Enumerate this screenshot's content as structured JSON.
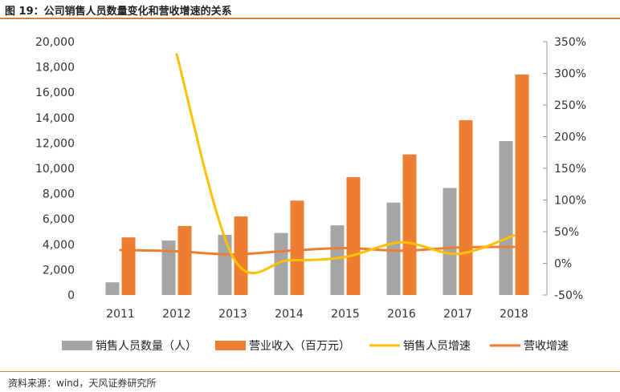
{
  "header": {
    "title": "图 19：公司销售人员数量变化和营收增速的关系"
  },
  "footer": {
    "source": "资料来源：wind，天风证券研究所"
  },
  "chart_data": {
    "type": "bar",
    "categories": [
      "2011",
      "2012",
      "2013",
      "2014",
      "2015",
      "2016",
      "2017",
      "2018"
    ],
    "series": [
      {
        "name": "销售人员数量（人）",
        "kind": "bar",
        "axis": "left",
        "color": "#a5a5a5",
        "values": [
          1000,
          4300,
          4750,
          4900,
          5500,
          7300,
          8450,
          12150
        ]
      },
      {
        "name": "营业收入（百万元）",
        "kind": "bar",
        "axis": "left",
        "color": "#ed7d31",
        "values": [
          4550,
          5450,
          6200,
          7450,
          9300,
          11100,
          13800,
          17400
        ]
      },
      {
        "name": "销售人员增速",
        "kind": "line",
        "axis": "right",
        "color": "#ffc000",
        "values": [
          null,
          330,
          10,
          5,
          10,
          33,
          15,
          44
        ]
      },
      {
        "name": "营收增速",
        "kind": "line",
        "axis": "right",
        "color": "#ed7d31",
        "values": [
          21,
          19,
          14,
          20,
          24,
          20,
          25,
          26
        ]
      }
    ],
    "y_left": {
      "min": 0,
      "max": 20000,
      "step": 2000,
      "tick_labels": [
        "0",
        "2,000",
        "4,000",
        "6,000",
        "8,000",
        "10,000",
        "12,000",
        "14,000",
        "16,000",
        "18,000",
        "20,000"
      ]
    },
    "y_right": {
      "min": -50,
      "max": 350,
      "step": 50,
      "tick_labels": [
        "-50%",
        "0%",
        "50%",
        "100%",
        "150%",
        "200%",
        "250%",
        "300%",
        "350%"
      ]
    },
    "legend_position": "bottom",
    "grid": false
  }
}
